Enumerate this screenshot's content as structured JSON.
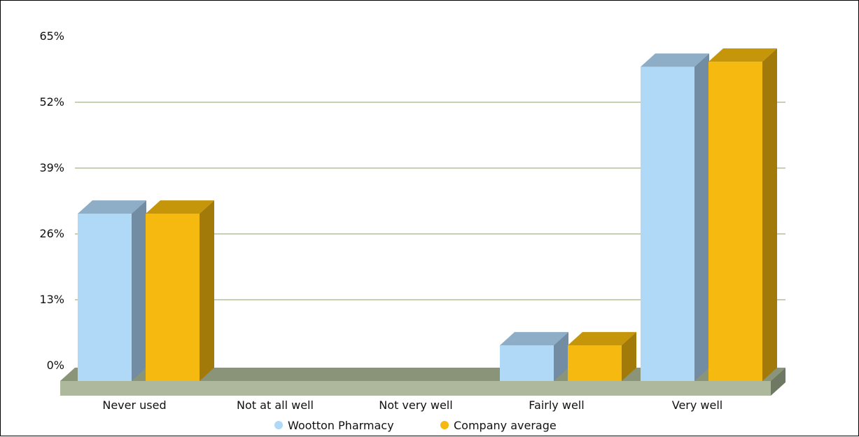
{
  "chart_data": {
    "type": "bar",
    "style": "3d-grouped",
    "categories": [
      "Never used",
      "Not at all well",
      "Not very well",
      "Fairly well",
      "Very well"
    ],
    "series": [
      {
        "name": "Wootton Pharmacy",
        "values": [
          30,
          0,
          0,
          4,
          59
        ],
        "color": "#b0d8f7"
      },
      {
        "name": "Company average",
        "values": [
          30,
          0,
          0,
          4,
          60
        ],
        "color": "#f5b90f"
      }
    ],
    "y_ticks": [
      "0%",
      "13%",
      "26%",
      "39%",
      "52%",
      "65%"
    ],
    "ylim": [
      0,
      65
    ],
    "grid": true,
    "legend": "bottom-center",
    "colors": {
      "gridline": "#8da36a",
      "floor_top": "#8a9478",
      "floor_front": "#aeb89d",
      "floor_side": "#6f7862"
    }
  }
}
